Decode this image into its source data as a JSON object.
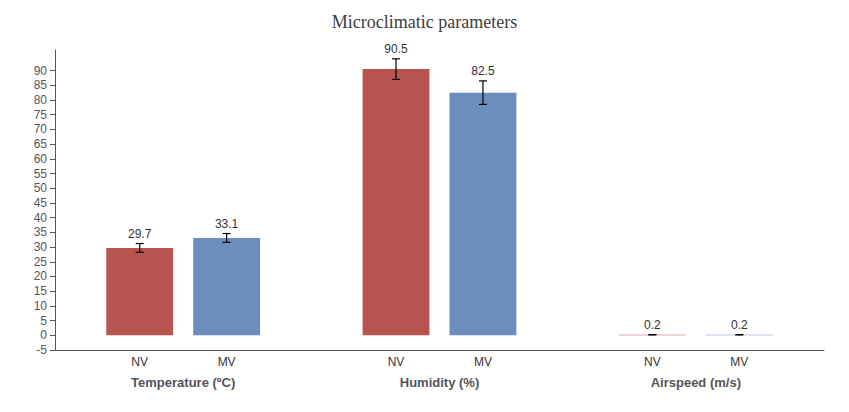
{
  "chart_data": {
    "type": "bar",
    "title": "Microclimatic parameters",
    "categories": [
      "Temperature (ºC)",
      "Humidity (%)",
      "Airspeed (m/s)"
    ],
    "series": [
      {
        "name": "NV",
        "color": "#b85450",
        "values": [
          29.7,
          90.5,
          0.2
        ],
        "errors": [
          1.5,
          3.5,
          0.05
        ]
      },
      {
        "name": "MV",
        "color": "#6c8ebf",
        "values": [
          33.1,
          82.5,
          0.2
        ],
        "errors": [
          1.5,
          4.0,
          0.05
        ]
      }
    ],
    "ylim": [
      -5,
      97
    ],
    "yticks": [
      -5,
      0,
      5,
      10,
      15,
      20,
      25,
      30,
      35,
      40,
      45,
      50,
      55,
      60,
      65,
      70,
      75,
      80,
      85,
      90
    ],
    "data_labels": true,
    "grid": false
  }
}
